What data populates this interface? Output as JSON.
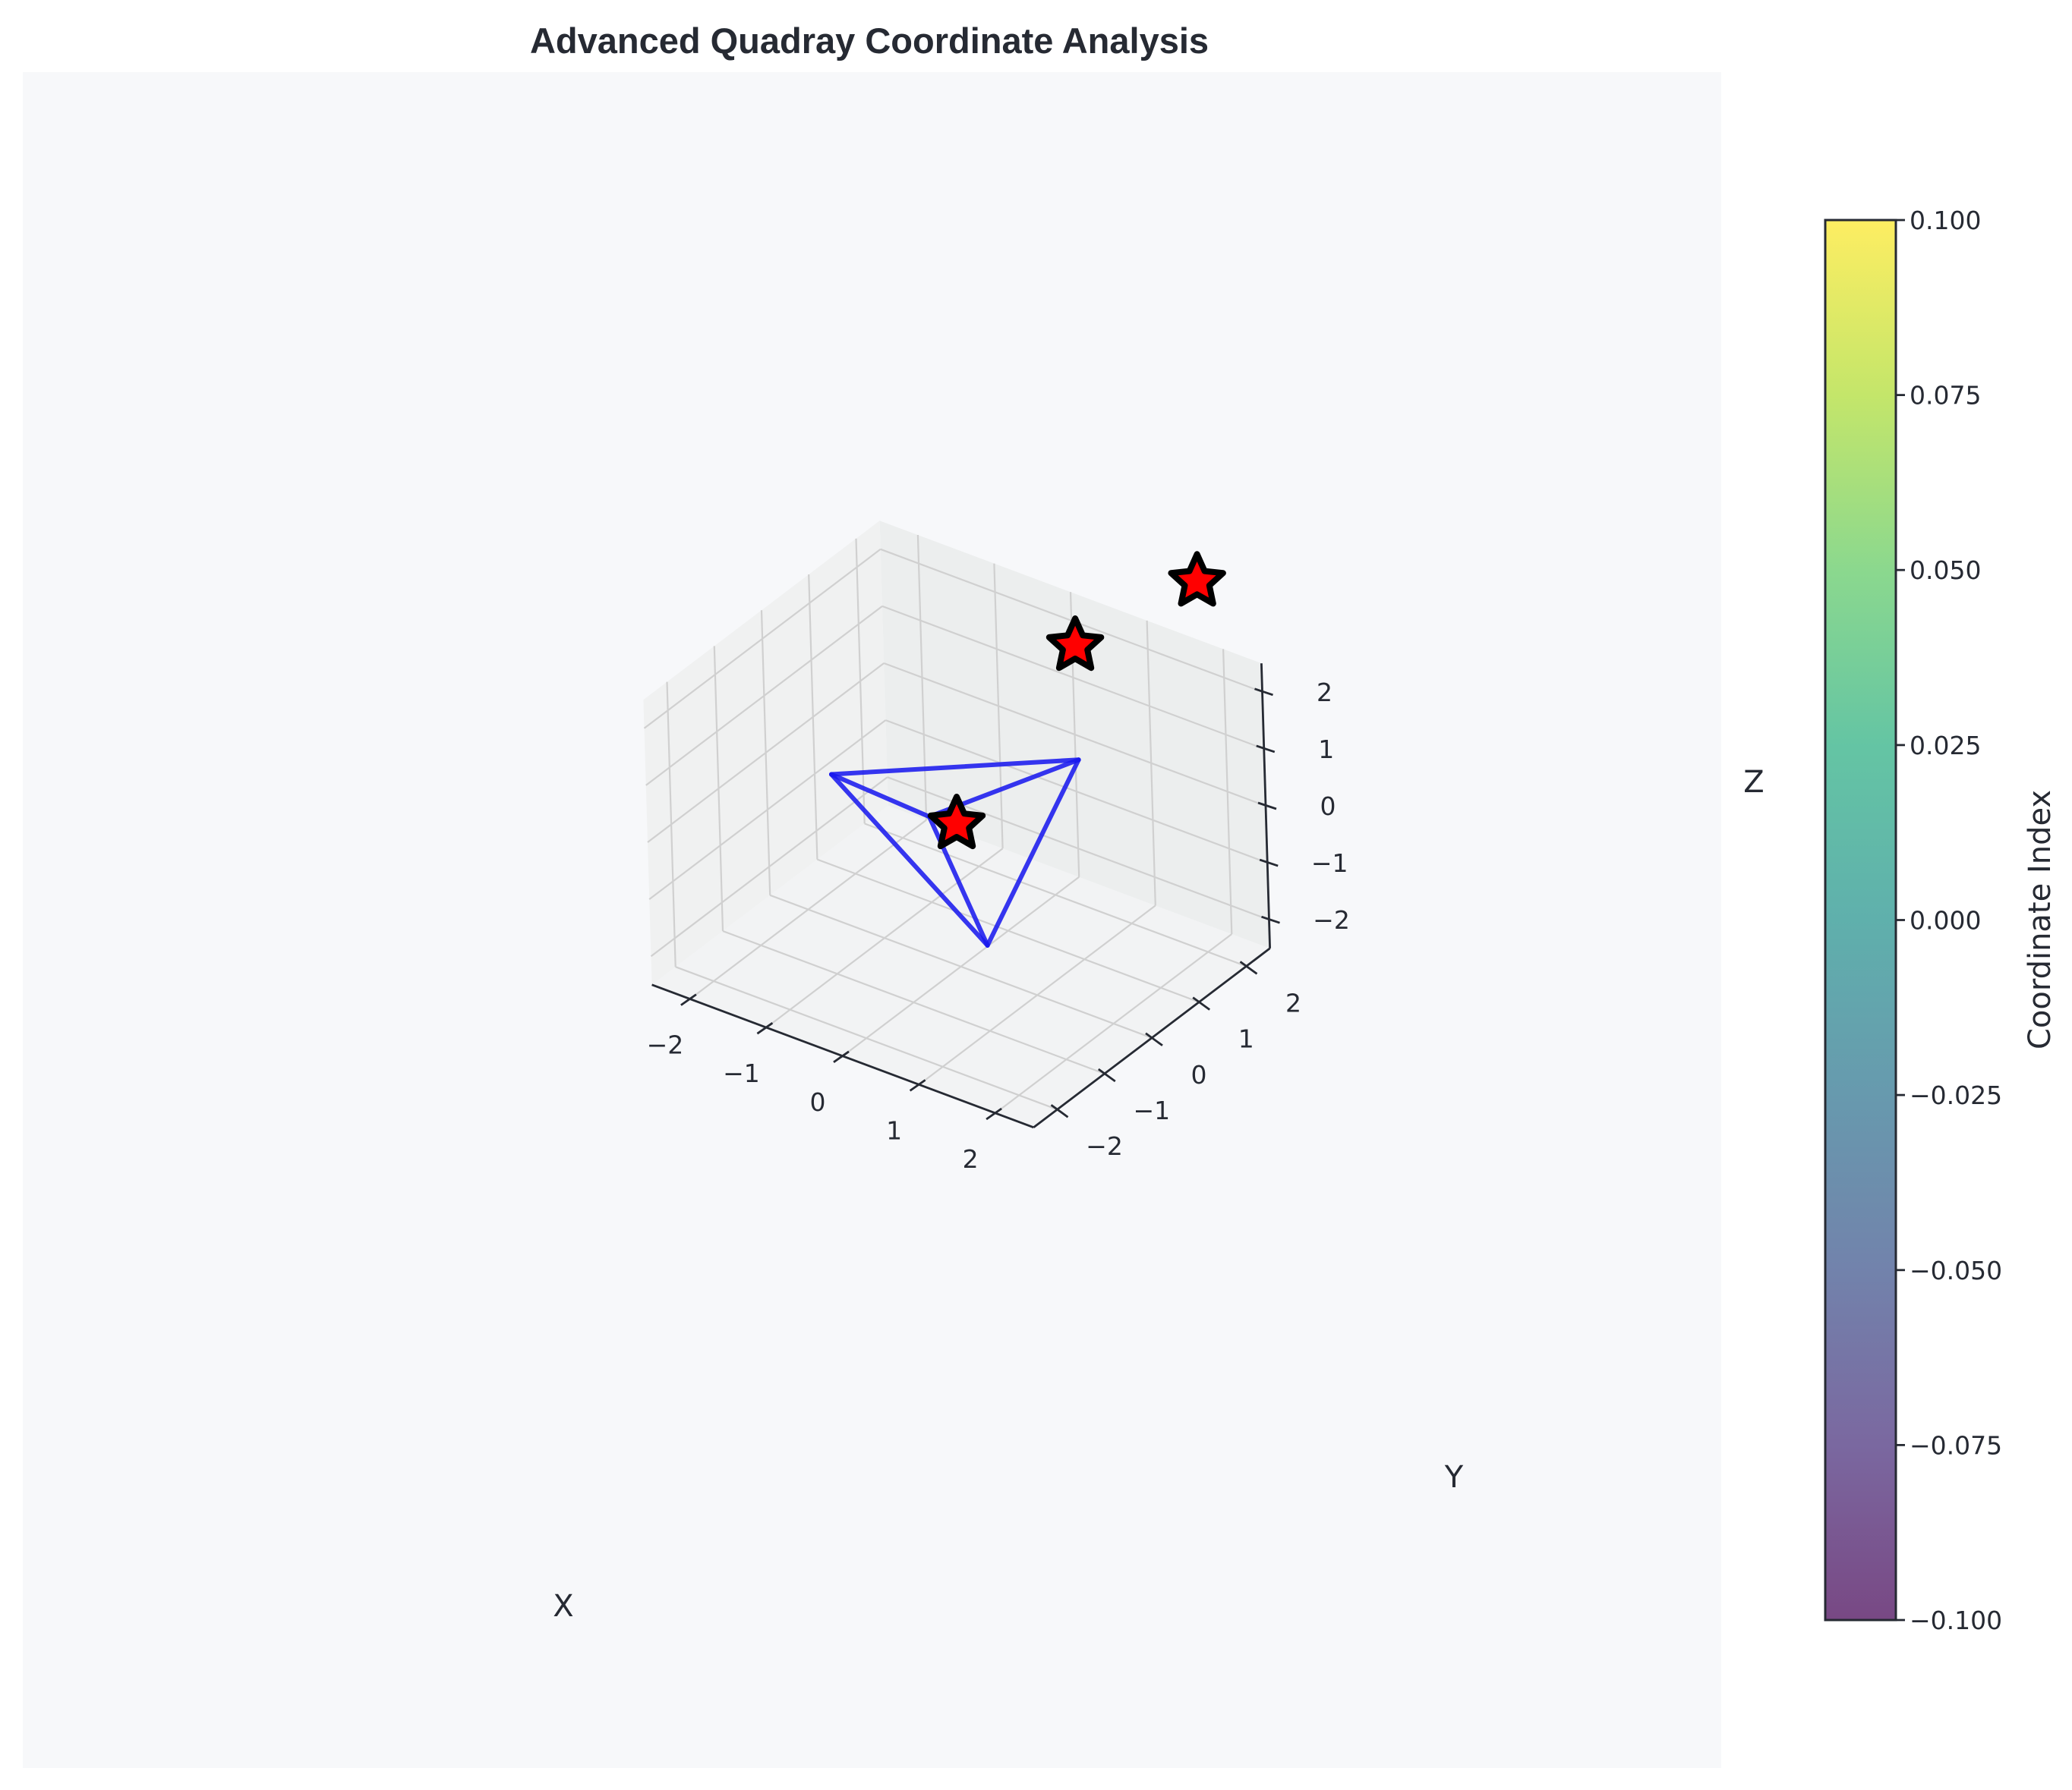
{
  "title": "Advanced Quadray Coordinate Analysis",
  "colors": {
    "background": "#ffffff",
    "axes_face": "#f7f8fa",
    "pane_back": "#eceeee",
    "pane_side": "#f0f1f1",
    "pane_floor": "#f2f3f4",
    "tetrahedron": "#1a1aee",
    "star_fill": "#ff0000",
    "star_edge": "#000000"
  },
  "chart_data": {
    "type": "scatter",
    "projection": "3d",
    "xlabel": "X",
    "ylabel": "Y",
    "zlabel": "Z",
    "xlim": [
      -2.5,
      2.5
    ],
    "ylim": [
      -2.5,
      2.5
    ],
    "zlim": [
      -2.5,
      2.5
    ],
    "x_ticks": [
      -2,
      -1,
      0,
      1,
      2
    ],
    "y_ticks": [
      -2,
      -1,
      0,
      1,
      2
    ],
    "z_ticks": [
      -2,
      -1,
      0,
      1,
      2
    ],
    "x_tick_labels": [
      "−2",
      "−1",
      "0",
      "1",
      "2"
    ],
    "y_tick_labels": [
      "−2",
      "−1",
      "0",
      "1",
      "2"
    ],
    "z_tick_labels": [
      "−2",
      "−1",
      "0",
      "1",
      "2"
    ],
    "grid": true,
    "tetrahedron": {
      "vertices": [
        [
          1,
          1,
          1
        ],
        [
          -1,
          -1,
          1
        ],
        [
          -1,
          1,
          -1
        ],
        [
          1,
          -1,
          -1
        ]
      ],
      "edges": [
        [
          0,
          1
        ],
        [
          0,
          2
        ],
        [
          0,
          3
        ],
        [
          1,
          2
        ],
        [
          1,
          3
        ],
        [
          2,
          3
        ]
      ],
      "color": "#1a1aee"
    },
    "series": [
      {
        "marker": "star",
        "points": [
          [
            0,
            0,
            0
          ],
          [
            1,
            1,
            3
          ],
          [
            2,
            2,
            4
          ]
        ]
      }
    ],
    "colorbar": {
      "label": "Coordinate Index",
      "cmap": "viridis",
      "range": [
        -0.1,
        0.1
      ],
      "ticks": [
        -0.1,
        -0.075,
        -0.05,
        -0.025,
        0.0,
        0.025,
        0.05,
        0.075,
        0.1
      ],
      "tick_labels": [
        "−0.100",
        "−0.075",
        "−0.050",
        "−0.025",
        "0.000",
        "0.025",
        "0.050",
        "0.075",
        "0.100"
      ]
    }
  }
}
